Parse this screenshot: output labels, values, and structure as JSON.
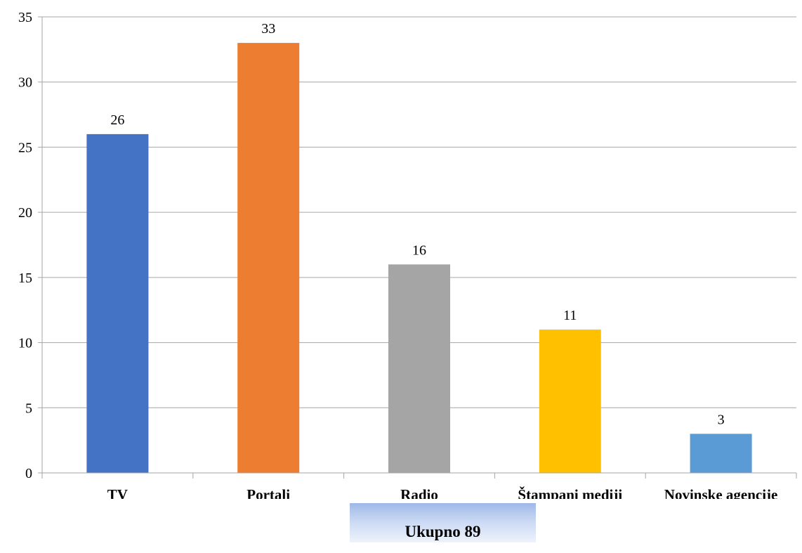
{
  "chart_data": {
    "type": "bar",
    "categories": [
      "TV",
      "Portali",
      "Radio",
      "Štampani mediji",
      "Novinske agencije"
    ],
    "values": [
      26,
      33,
      16,
      11,
      3
    ],
    "colors": [
      "#4472c4",
      "#ed7d31",
      "#a5a5a5",
      "#ffc000",
      "#5b9bd5"
    ],
    "ylim": [
      0,
      35
    ],
    "yticks": [
      0,
      5,
      10,
      15,
      20,
      25,
      30,
      35
    ],
    "grid": true,
    "data_labels": true
  },
  "total_label": "Ukupno 89"
}
